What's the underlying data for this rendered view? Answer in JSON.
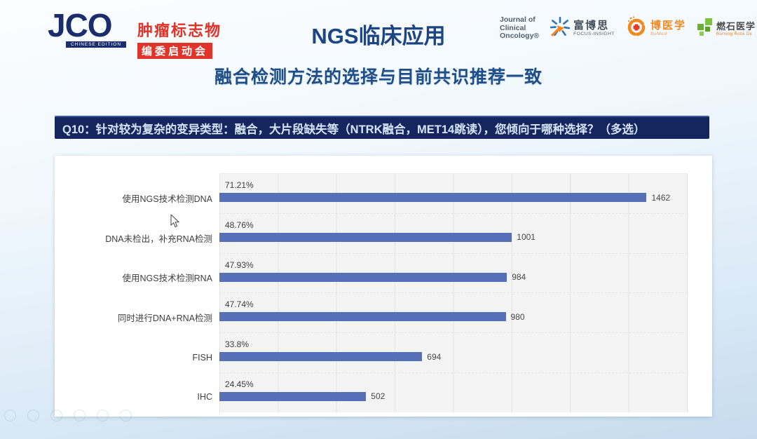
{
  "page": {
    "title": "NGS临床应用",
    "subtitle": "融合检测方法的选择与目前共识推荐一致"
  },
  "question": {
    "label": "Q10：针对较为复杂的变异类型：融合，大片段缺失等（NTRK融合，MET14跳读），您倾向于哪种选择？（多选）"
  },
  "logos": {
    "jco": {
      "acronym": "JCO",
      "edition": "CHINESE EDITION",
      "event_line1": "肿瘤标志物",
      "event_line2": "编委启动会"
    },
    "partners": {
      "journal": {
        "line1": "Journal of",
        "line2": "Clinical",
        "line3": "Oncology®"
      },
      "focus_insight": {
        "cn": "富博思",
        "en": "FOCUS-INSIGHT"
      },
      "bomed": {
        "cn": "博医学",
        "en": "BoMed"
      },
      "burning_rock": {
        "cn": "燃石医学",
        "en": "Burning Rock Dx"
      }
    }
  },
  "chart_data": {
    "type": "bar",
    "orientation": "horizontal",
    "title": "",
    "categories": [
      "使用NGS技术检测DNA",
      "DNA未检出，补充RNA检测",
      "使用NGS技术检测RNA",
      "同时进行DNA+RNA检测",
      "FISH",
      "IHC"
    ],
    "values": [
      1462,
      1001,
      984,
      980,
      694,
      502
    ],
    "percent_labels": [
      "71.21%",
      "48.76%",
      "47.93%",
      "47.74%",
      "33.8%",
      "24.45%"
    ],
    "xlim": [
      0,
      1600
    ],
    "gridline_step": 200,
    "grid": true,
    "legend": false,
    "bar_color": "#5570b6",
    "plot_bg": "#f4f4f4"
  },
  "colors": {
    "title_blue": "#1c4584",
    "subtitle_blue": "#1f4f86",
    "question_bg": "#15265f",
    "question_text": "#d4e4fa",
    "bar": "#5570b6",
    "jco_navy": "#1a2c6b",
    "brand_red": "#e0342b",
    "brand_orange": "#f08a1e",
    "brand_green": "#67b32e"
  },
  "footer": {
    "icons": [
      {
        "name": "toolbar-ghost-icon"
      },
      {
        "name": "toolbar-ghost-icon"
      },
      {
        "name": "toolbar-ghost-icon"
      },
      {
        "name": "toolbar-ghost-icon"
      },
      {
        "name": "toolbar-ghost-icon"
      },
      {
        "name": "toolbar-ghost-icon"
      }
    ]
  }
}
